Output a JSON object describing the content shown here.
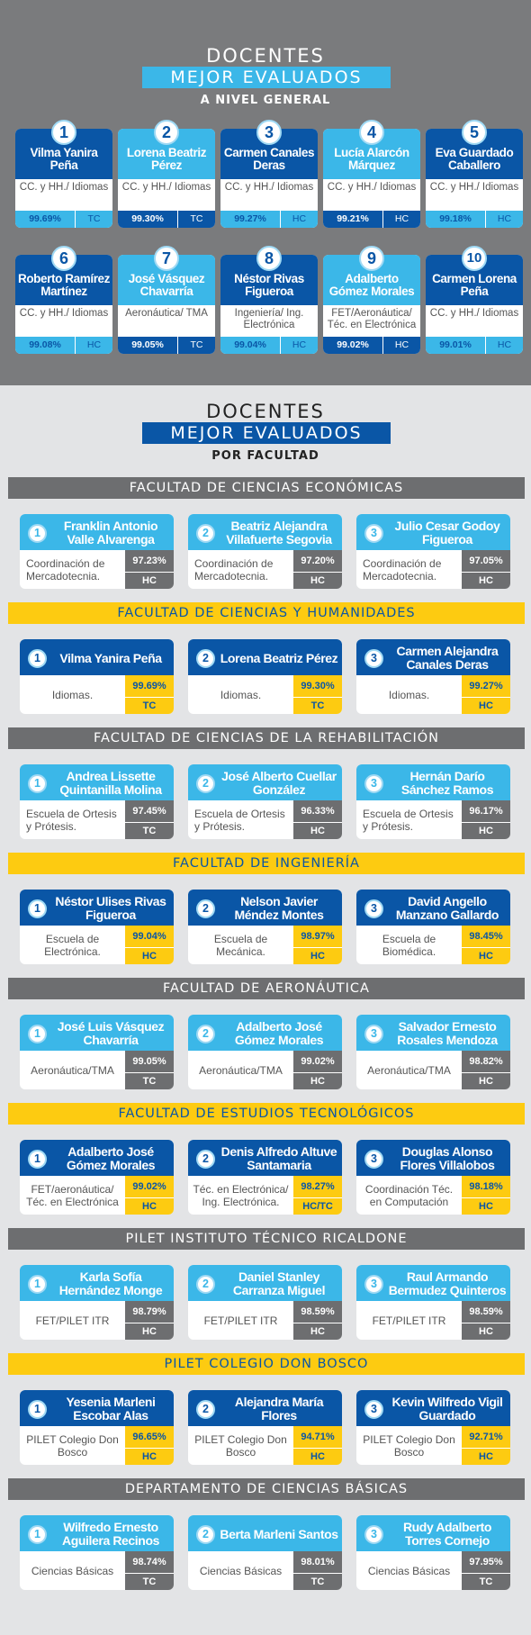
{
  "general": {
    "title1": "DOCENTES",
    "title2": "MEJOR EVALUADOS",
    "subtitle": "A NIVEL GENERAL",
    "cards": [
      {
        "rank": "1",
        "name": "Vilma Yanira Peña",
        "dept": "CC. y HH./ Idiomas",
        "pct": "99.69%",
        "type": "TC"
      },
      {
        "rank": "2",
        "name": "Lorena Beatriz Pérez",
        "dept": "CC. y HH./ Idiomas",
        "pct": "99.30%",
        "type": "TC"
      },
      {
        "rank": "3",
        "name": "Carmen Canales Deras",
        "dept": "CC. y HH./ Idiomas",
        "pct": "99.27%",
        "type": "HC"
      },
      {
        "rank": "4",
        "name": "Lucía Alarcón Márquez",
        "dept": "CC. y HH./ Idiomas",
        "pct": "99.21%",
        "type": "HC"
      },
      {
        "rank": "5",
        "name": "Eva Guardado Caballero",
        "dept": "CC. y HH./ Idiomas",
        "pct": "99.18%",
        "type": "HC"
      },
      {
        "rank": "6",
        "name": "Roberto Ramírez Martínez",
        "dept": "CC. y HH./ Idiomas",
        "pct": "99.08%",
        "type": "HC"
      },
      {
        "rank": "7",
        "name": "José Vásquez Chavarría",
        "dept": "Aeronáutica/ TMA",
        "pct": "99.05%",
        "type": "TC"
      },
      {
        "rank": "8",
        "name": "Néstor Rivas Figueroa",
        "dept": "Ingeniería/ Ing. Electrónica",
        "pct": "99.04%",
        "type": "HC"
      },
      {
        "rank": "9",
        "name": "Adalberto Gómez Morales",
        "dept": "FET/Aeronáutica/ Téc. en Electrónica",
        "pct": "99.02%",
        "type": "HC"
      },
      {
        "rank": "10",
        "name": "Carmen Lorena Peña",
        "dept": "CC. y HH./ Idiomas",
        "pct": "99.01%",
        "type": "HC"
      }
    ]
  },
  "facultad": {
    "title1": "DOCENTES",
    "title2": "MEJOR EVALUADOS",
    "subtitle": "POR FACULTAD",
    "sections": [
      {
        "title": "FACULTAD DE CIENCIAS ECONÓMICAS",
        "style": "gray",
        "cards": [
          {
            "rank": "1",
            "name": "Franklin Antonio Valle Alvarenga",
            "dept": "Coordinación de Mercadotecnia.",
            "pct": "97.23%",
            "type": "HC"
          },
          {
            "rank": "2",
            "name": "Beatriz Alejandra Villafuerte Segovia",
            "dept": "Coordinación de Mercadotecnia.",
            "pct": "97.20%",
            "type": "HC"
          },
          {
            "rank": "3",
            "name": "Julio Cesar Godoy Figueroa",
            "dept": "Coordinación de Mercadotecnia.",
            "pct": "97.05%",
            "type": "HC"
          }
        ]
      },
      {
        "title": "FACULTAD DE CIENCIAS Y HUMANIDADES",
        "style": "yel",
        "cards": [
          {
            "rank": "1",
            "name": "Vilma Yanira Peña",
            "dept": "Idiomas.",
            "pct": "99.69%",
            "type": "TC"
          },
          {
            "rank": "2",
            "name": "Lorena Beatriz Pérez",
            "dept": "Idiomas.",
            "pct": "99.30%",
            "type": "TC"
          },
          {
            "rank": "3",
            "name": "Carmen Alejandra Canales Deras",
            "dept": "Idiomas.",
            "pct": "99.27%",
            "type": "HC"
          }
        ]
      },
      {
        "title": "FACULTAD DE CIENCIAS DE LA REHABILITACIÓN",
        "style": "gray",
        "cards": [
          {
            "rank": "1",
            "name": "Andrea Lissette Quintanilla Molina",
            "dept": "Escuela de Ortesis y Prótesis.",
            "pct": "97.45%",
            "type": "TC"
          },
          {
            "rank": "2",
            "name": "José Alberto Cuellar González",
            "dept": "Escuela de Ortesis y Prótesis.",
            "pct": "96.33%",
            "type": "HC"
          },
          {
            "rank": "3",
            "name": "Hernán Darío Sánchez Ramos",
            "dept": "Escuela de Ortesis y Prótesis.",
            "pct": "96.17%",
            "type": "HC"
          }
        ]
      },
      {
        "title": "FACULTAD DE INGENIERÍA",
        "style": "yel",
        "cards": [
          {
            "rank": "1",
            "name": "Néstor Ulises Rivas Figueroa",
            "dept": "Escuela de Electrónica.",
            "pct": "99.04%",
            "type": "HC"
          },
          {
            "rank": "2",
            "name": "Nelson Javier Méndez Montes",
            "dept": "Escuela de Mecánica.",
            "pct": "98.97%",
            "type": "HC"
          },
          {
            "rank": "3",
            "name": "David Angello Manzano Gallardo",
            "dept": "Escuela de Biomédica.",
            "pct": "98.45%",
            "type": "HC"
          }
        ]
      },
      {
        "title": "FACULTAD DE AERONÁUTICA",
        "style": "gray",
        "cards": [
          {
            "rank": "1",
            "name": "José Luis Vásquez Chavarría",
            "dept": "Aeronáutica/TMA",
            "pct": "99.05%",
            "type": "TC"
          },
          {
            "rank": "2",
            "name": "Adalberto José Gómez Morales",
            "dept": "Aeronáutica/TMA",
            "pct": "99.02%",
            "type": "HC"
          },
          {
            "rank": "3",
            "name": "Salvador Ernesto Rosales Mendoza",
            "dept": "Aeronáutica/TMA",
            "pct": "98.82%",
            "type": "HC"
          }
        ]
      },
      {
        "title": "FACULTAD DE ESTUDIOS TECNOLÓGICOS",
        "style": "yel",
        "cards": [
          {
            "rank": "1",
            "name": "Adalberto José Gómez Morales",
            "dept": "FET/aeronáutica/ Téc. en Electrónica",
            "pct": "99.02%",
            "type": "HC"
          },
          {
            "rank": "2",
            "name": "Denis Alfredo Altuve Santamaria",
            "dept": "Téc. en Electrónica/ Ing. Electrónica.",
            "pct": "98.27%",
            "type": "HC/TC"
          },
          {
            "rank": "3",
            "name": "Douglas Alonso Flores Villalobos",
            "dept": "Coordinación Téc. en Computación",
            "pct": "98.18%",
            "type": "HC"
          }
        ]
      },
      {
        "title": "PILET INSTITUTO TÉCNICO RICALDONE",
        "style": "gray",
        "cards": [
          {
            "rank": "1",
            "name": "Karla Sofía Hernández Monge",
            "dept": "FET/PILET ITR",
            "pct": "98.79%",
            "type": "HC"
          },
          {
            "rank": "2",
            "name": "Daniel Stanley Carranza Miguel",
            "dept": "FET/PILET ITR",
            "pct": "98.59%",
            "type": "HC"
          },
          {
            "rank": "3",
            "name": "Raul Armando Bermudez Quinteros",
            "dept": "FET/PILET ITR",
            "pct": "98.59%",
            "type": "HC"
          }
        ]
      },
      {
        "title": "PILET COLEGIO DON BOSCO",
        "style": "yel",
        "cards": [
          {
            "rank": "1",
            "name": "Yesenia Marleni Escobar Alas",
            "dept": "PILET Colegio Don Bosco",
            "pct": "96.65%",
            "type": "HC"
          },
          {
            "rank": "2",
            "name": "Alejandra María Flores",
            "dept": "PILET Colegio Don Bosco",
            "pct": "94.71%",
            "type": "HC"
          },
          {
            "rank": "3",
            "name": "Kevin Wilfredo Vigil Guardado",
            "dept": "PILET Colegio Don Bosco",
            "pct": "92.71%",
            "type": "HC"
          }
        ]
      },
      {
        "title": "DEPARTAMENTO DE CIENCIAS BÁSICAS",
        "style": "gray",
        "cards": [
          {
            "rank": "1",
            "name": "Wilfredo Ernesto Aguilera Recinos",
            "dept": "Ciencias Básicas",
            "pct": "98.74%",
            "type": "TC"
          },
          {
            "rank": "2",
            "name": "Berta Marleni Santos",
            "dept": "Ciencias Básicas",
            "pct": "98.01%",
            "type": "TC"
          },
          {
            "rank": "3",
            "name": "Rudy Adalberto Torres Cornejo",
            "dept": "Ciencias Básicas",
            "pct": "97.95%",
            "type": "TC"
          }
        ]
      }
    ]
  },
  "colors": {
    "blue": "#0a56a6",
    "lightblue": "#3bb7e8",
    "yellow": "#fdcb11",
    "gray": "#6d6e70"
  }
}
